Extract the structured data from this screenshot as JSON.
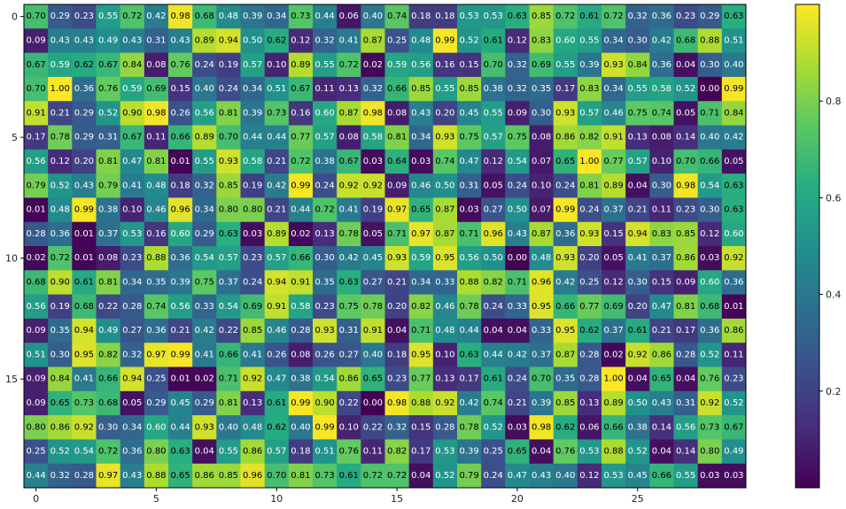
{
  "chart_data": {
    "type": "heatmap",
    "title": "",
    "xlabel": "",
    "ylabel": "",
    "colormap": "viridis",
    "grid": false,
    "legend": "colorbar-right",
    "n_rows": 20,
    "n_cols": 30,
    "x_ticks": [
      0,
      5,
      10,
      15,
      20,
      25
    ],
    "x_tick_labels": [
      "0",
      "5",
      "10",
      "15",
      "20",
      "25"
    ],
    "y_ticks": [
      0,
      5,
      10,
      15
    ],
    "y_tick_labels": [
      "0",
      "5",
      "10",
      "15"
    ],
    "colorbar": {
      "range": [
        0.0,
        1.0
      ],
      "ticks": [
        0.2,
        0.4,
        0.6,
        0.8
      ],
      "tick_labels": [
        "0.2",
        "0.4",
        "0.6",
        "0.8"
      ]
    },
    "values": [
      [
        0.7,
        0.29,
        0.23,
        0.55,
        0.72,
        0.42,
        0.98,
        0.68,
        0.48,
        0.39,
        0.34,
        0.73,
        0.44,
        0.06,
        0.4,
        0.74,
        0.18,
        0.18,
        0.53,
        0.53,
        0.63,
        0.85,
        0.72,
        0.61,
        0.72,
        0.32,
        0.36,
        0.23,
        0.29,
        0.63
      ],
      [
        0.09,
        0.43,
        0.43,
        0.49,
        0.43,
        0.31,
        0.43,
        0.89,
        0.94,
        0.5,
        0.62,
        0.12,
        0.32,
        0.41,
        0.87,
        0.25,
        0.48,
        0.99,
        0.52,
        0.61,
        0.12,
        0.83,
        0.6,
        0.55,
        0.34,
        0.3,
        0.42,
        0.68,
        0.88,
        0.51
      ],
      [
        0.67,
        0.59,
        0.62,
        0.67,
        0.84,
        0.08,
        0.76,
        0.24,
        0.19,
        0.57,
        0.1,
        0.89,
        0.55,
        0.72,
        0.02,
        0.59,
        0.56,
        0.16,
        0.15,
        0.7,
        0.32,
        0.69,
        0.55,
        0.39,
        0.93,
        0.84,
        0.36,
        0.04,
        0.3,
        0.4
      ],
      [
        0.7,
        1.0,
        0.36,
        0.76,
        0.59,
        0.69,
        0.15,
        0.4,
        0.24,
        0.34,
        0.51,
        0.67,
        0.11,
        0.13,
        0.32,
        0.66,
        0.85,
        0.55,
        0.85,
        0.38,
        0.32,
        0.35,
        0.17,
        0.83,
        0.34,
        0.55,
        0.58,
        0.52,
        0.0,
        0.99
      ],
      [
        0.91,
        0.21,
        0.29,
        0.52,
        0.9,
        0.98,
        0.26,
        0.56,
        0.81,
        0.39,
        0.73,
        0.16,
        0.6,
        0.87,
        0.98,
        0.08,
        0.43,
        0.2,
        0.45,
        0.55,
        0.09,
        0.3,
        0.93,
        0.57,
        0.46,
        0.75,
        0.74,
        0.05,
        0.71,
        0.84
      ],
      [
        0.17,
        0.78,
        0.29,
        0.31,
        0.67,
        0.11,
        0.66,
        0.89,
        0.7,
        0.44,
        0.44,
        0.77,
        0.57,
        0.08,
        0.58,
        0.81,
        0.34,
        0.93,
        0.75,
        0.57,
        0.75,
        0.08,
        0.86,
        0.82,
        0.91,
        0.13,
        0.08,
        0.14,
        0.4,
        0.42
      ],
      [
        0.56,
        0.12,
        0.2,
        0.81,
        0.47,
        0.81,
        0.01,
        0.55,
        0.93,
        0.58,
        0.21,
        0.72,
        0.38,
        0.67,
        0.03,
        0.64,
        0.03,
        0.74,
        0.47,
        0.12,
        0.54,
        0.07,
        0.65,
        1.0,
        0.77,
        0.57,
        0.1,
        0.7,
        0.66,
        0.05
      ],
      [
        0.79,
        0.52,
        0.43,
        0.79,
        0.41,
        0.48,
        0.18,
        0.32,
        0.85,
        0.19,
        0.42,
        0.99,
        0.24,
        0.92,
        0.92,
        0.09,
        0.46,
        0.5,
        0.31,
        0.05,
        0.24,
        0.1,
        0.24,
        0.81,
        0.89,
        0.04,
        0.3,
        0.98,
        0.54,
        0.63
      ],
      [
        0.01,
        0.48,
        0.99,
        0.38,
        0.1,
        0.46,
        0.96,
        0.34,
        0.8,
        0.8,
        0.21,
        0.44,
        0.72,
        0.41,
        0.19,
        0.97,
        0.65,
        0.87,
        0.03,
        0.27,
        0.5,
        0.07,
        0.99,
        0.24,
        0.37,
        0.21,
        0.11,
        0.23,
        0.3,
        0.63
      ],
      [
        0.28,
        0.36,
        0.01,
        0.37,
        0.53,
        0.16,
        0.6,
        0.29,
        0.63,
        0.03,
        0.89,
        0.02,
        0.13,
        0.78,
        0.05,
        0.71,
        0.97,
        0.87,
        0.71,
        0.96,
        0.43,
        0.87,
        0.36,
        0.93,
        0.15,
        0.94,
        0.83,
        0.85,
        0.12,
        0.6
      ],
      [
        0.02,
        0.72,
        0.01,
        0.08,
        0.23,
        0.88,
        0.36,
        0.54,
        0.57,
        0.23,
        0.57,
        0.66,
        0.3,
        0.42,
        0.45,
        0.93,
        0.59,
        0.95,
        0.56,
        0.5,
        0.0,
        0.48,
        0.93,
        0.2,
        0.05,
        0.41,
        0.37,
        0.86,
        0.03,
        0.92
      ],
      [
        0.68,
        0.9,
        0.61,
        0.81,
        0.34,
        0.35,
        0.39,
        0.75,
        0.37,
        0.24,
        0.94,
        0.91,
        0.35,
        0.63,
        0.27,
        0.21,
        0.34,
        0.33,
        0.88,
        0.82,
        0.71,
        0.96,
        0.42,
        0.25,
        0.12,
        0.3,
        0.15,
        0.09,
        0.6,
        0.36
      ],
      [
        0.56,
        0.19,
        0.68,
        0.22,
        0.28,
        0.74,
        0.56,
        0.33,
        0.54,
        0.69,
        0.91,
        0.58,
        0.23,
        0.75,
        0.78,
        0.2,
        0.82,
        0.46,
        0.78,
        0.24,
        0.33,
        0.95,
        0.66,
        0.77,
        0.69,
        0.2,
        0.47,
        0.81,
        0.68,
        0.01
      ],
      [
        0.09,
        0.35,
        0.94,
        0.49,
        0.27,
        0.36,
        0.21,
        0.42,
        0.22,
        0.85,
        0.46,
        0.28,
        0.93,
        0.31,
        0.91,
        0.04,
        0.71,
        0.48,
        0.44,
        0.04,
        0.04,
        0.33,
        0.95,
        0.62,
        0.37,
        0.61,
        0.21,
        0.17,
        0.36,
        0.86
      ],
      [
        0.51,
        0.3,
        0.95,
        0.82,
        0.32,
        0.97,
        0.99,
        0.41,
        0.66,
        0.41,
        0.26,
        0.08,
        0.26,
        0.27,
        0.4,
        0.18,
        0.95,
        0.1,
        0.63,
        0.44,
        0.42,
        0.37,
        0.87,
        0.28,
        0.02,
        0.92,
        0.86,
        0.28,
        0.52,
        0.11
      ],
      [
        0.09,
        0.84,
        0.41,
        0.66,
        0.94,
        0.25,
        0.01,
        0.02,
        0.71,
        0.92,
        0.47,
        0.38,
        0.54,
        0.86,
        0.65,
        0.23,
        0.77,
        0.13,
        0.17,
        0.61,
        0.24,
        0.7,
        0.35,
        0.28,
        1.0,
        0.04,
        0.65,
        0.04,
        0.76,
        0.23
      ],
      [
        0.09,
        0.65,
        0.73,
        0.68,
        0.05,
        0.29,
        0.45,
        0.29,
        0.81,
        0.13,
        0.61,
        0.99,
        0.9,
        0.22,
        0.0,
        0.98,
        0.88,
        0.92,
        0.42,
        0.74,
        0.21,
        0.39,
        0.85,
        0.13,
        0.89,
        0.5,
        0.43,
        0.31,
        0.92,
        0.52
      ],
      [
        0.8,
        0.86,
        0.92,
        0.3,
        0.34,
        0.6,
        0.44,
        0.93,
        0.4,
        0.48,
        0.62,
        0.4,
        0.99,
        0.1,
        0.22,
        0.32,
        0.15,
        0.28,
        0.78,
        0.52,
        0.03,
        0.98,
        0.62,
        0.06,
        0.66,
        0.38,
        0.14,
        0.56,
        0.73,
        0.67
      ],
      [
        0.25,
        0.52,
        0.54,
        0.72,
        0.36,
        0.8,
        0.63,
        0.04,
        0.55,
        0.86,
        0.57,
        0.18,
        0.51,
        0.76,
        0.11,
        0.82,
        0.17,
        0.53,
        0.39,
        0.25,
        0.65,
        0.04,
        0.76,
        0.53,
        0.88,
        0.52,
        0.04,
        0.14,
        0.8,
        0.49
      ],
      [
        0.44,
        0.32,
        0.28,
        0.97,
        0.43,
        0.88,
        0.65,
        0.86,
        0.85,
        0.96,
        0.7,
        0.81,
        0.73,
        0.61,
        0.72,
        0.72,
        0.04,
        0.52,
        0.79,
        0.24,
        0.47,
        0.43,
        0.4,
        0.12,
        0.53,
        0.45,
        0.66,
        0.55,
        0.03,
        0.03
      ]
    ]
  }
}
